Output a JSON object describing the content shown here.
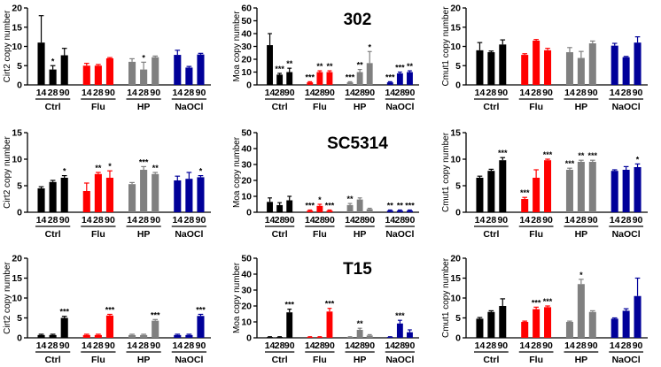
{
  "colors": {
    "Ctrl": "#000000",
    "Flu": "#ff0000",
    "HP": "#808080",
    "NaOCl": "#000099"
  },
  "chart_data": [
    {
      "type": "bar",
      "id": "c302-cirt2",
      "strain": "302",
      "title": "",
      "ylabel": "Cirt2 copy number",
      "ylim": [
        0,
        20
      ],
      "yticks": [
        0,
        5,
        10,
        15,
        20
      ],
      "ytick_labels": [
        "0",
        "5",
        "10",
        "15",
        "20"
      ],
      "x_labels": [
        "14",
        "28",
        "90",
        "14",
        "28",
        "90",
        "14",
        "28",
        "90",
        "14",
        "28",
        "90"
      ],
      "groups": [
        "Ctrl",
        "Flu",
        "HP",
        "NaOCl"
      ],
      "values": [
        11,
        4,
        7.7,
        5,
        5,
        6.9,
        6,
        4,
        7.2,
        7.8,
        4.5,
        7.9
      ],
      "errors": [
        7,
        1,
        1.8,
        0.6,
        0.3,
        0.2,
        0.8,
        1.9,
        0.3,
        1.2,
        0.3,
        0.3
      ],
      "significance": [
        "",
        "*",
        "",
        "",
        "",
        "",
        "",
        "*",
        "",
        "",
        "",
        ""
      ]
    },
    {
      "type": "bar",
      "id": "c302-moa",
      "strain": "302",
      "title": "302",
      "ylabel": "Moa copy number",
      "ylim": [
        0,
        60
      ],
      "yticks": [
        0,
        10,
        20,
        30,
        40,
        50,
        60
      ],
      "ytick_labels": [
        "0",
        "10",
        "20",
        "30",
        "40",
        "50",
        "60"
      ],
      "x_labels": [
        "14",
        "28",
        "90",
        "14",
        "28",
        "90",
        "14",
        "28",
        "90",
        "14",
        "28",
        "90"
      ],
      "groups": [
        "Ctrl",
        "Flu",
        "HP",
        "NaOCl"
      ],
      "values": [
        31,
        8,
        10,
        2,
        10,
        10,
        2,
        10,
        17,
        2,
        9,
        10
      ],
      "errors": [
        9,
        1,
        3,
        0.5,
        1,
        1,
        0.5,
        2,
        9,
        0.5,
        1,
        1
      ],
      "significance": [
        "",
        "***",
        "**",
        "***",
        "**",
        "**",
        "***",
        "**",
        "*",
        "***",
        "***",
        "**"
      ]
    },
    {
      "type": "bar",
      "id": "c302-cmut1",
      "strain": "302",
      "title": "",
      "ylabel": "Cmut1 copy number",
      "ylim": [
        0,
        20
      ],
      "yticks": [
        0,
        5,
        10,
        15,
        20
      ],
      "ytick_labels": [
        "0",
        "5",
        "10",
        "15",
        "20"
      ],
      "x_labels": [
        "14",
        "28",
        "90",
        "14",
        "28",
        "90",
        "14",
        "28",
        "90",
        "14",
        "28",
        "90"
      ],
      "groups": [
        "Ctrl",
        "Flu",
        "HP",
        "NaOCl"
      ],
      "values": [
        9,
        8.5,
        10.5,
        7.8,
        11.5,
        9,
        8.5,
        7,
        10.8,
        10.2,
        7.2,
        11
      ],
      "errors": [
        2,
        0.3,
        1.2,
        0.3,
        0.3,
        0.5,
        1.2,
        1.7,
        0.6,
        0.6,
        0.2,
        1.5
      ],
      "significance": [
        "",
        "",
        "",
        "",
        "",
        "",
        "",
        "",
        "",
        "",
        "",
        ""
      ]
    },
    {
      "type": "bar",
      "id": "sc-cirt2",
      "strain": "SC5314",
      "title": "",
      "ylabel": "Cirt2 copy number",
      "ylim": [
        0,
        15
      ],
      "yticks": [
        0,
        5,
        10,
        15
      ],
      "ytick_labels": [
        "0",
        "5",
        "10",
        "15"
      ],
      "x_labels": [
        "14",
        "28",
        "90",
        "14",
        "28",
        "90",
        "14",
        "28",
        "90",
        "14",
        "28",
        "90"
      ],
      "groups": [
        "Ctrl",
        "Flu",
        "HP",
        "NaOCl"
      ],
      "values": [
        4.5,
        5.7,
        6.5,
        4,
        7.2,
        6.5,
        5.3,
        8,
        7.2,
        6,
        6.3,
        6.6
      ],
      "errors": [
        0.3,
        0.3,
        0.4,
        1.5,
        0.3,
        1.3,
        0.3,
        0.6,
        0.3,
        0.8,
        1.2,
        0.3
      ],
      "significance": [
        "",
        "",
        "*",
        "",
        "**",
        "*",
        "",
        "***",
        "**",
        "",
        "",
        "*"
      ]
    },
    {
      "type": "bar",
      "id": "sc-moa",
      "strain": "SC5314",
      "title": "SC5314",
      "ylabel": "Moa copy number",
      "ylim": [
        0,
        50
      ],
      "yticks": [
        0,
        10,
        20,
        30,
        40,
        50
      ],
      "ytick_labels": [
        "0",
        "10",
        "20",
        "30",
        "40",
        "50"
      ],
      "x_labels": [
        "14",
        "28",
        "90",
        "14",
        "28",
        "90",
        "14",
        "28",
        "90",
        "14",
        "28",
        "90"
      ],
      "groups": [
        "Ctrl",
        "Flu",
        "HP",
        "NaOCl"
      ],
      "values": [
        6.5,
        4.5,
        7.5,
        1,
        4,
        1,
        4.5,
        8,
        2,
        1,
        1,
        1
      ],
      "errors": [
        2.5,
        1.5,
        2.5,
        0.4,
        1,
        0.4,
        1,
        1,
        0.5,
        0.4,
        0.4,
        0.4
      ],
      "significance": [
        "",
        "",
        "",
        "***",
        "*",
        "***",
        "**",
        "",
        "",
        "**",
        "**",
        "***"
      ]
    },
    {
      "type": "bar",
      "id": "sc-cmut1",
      "strain": "SC5314",
      "title": "",
      "ylabel": "Cmut1 copy number",
      "ylim": [
        0,
        15
      ],
      "yticks": [
        0,
        5,
        10,
        15
      ],
      "ytick_labels": [
        "0",
        "5",
        "10",
        "15"
      ],
      "x_labels": [
        "14",
        "28",
        "90",
        "14",
        "28",
        "90",
        "14",
        "28",
        "90",
        "14",
        "28",
        "90"
      ],
      "groups": [
        "Ctrl",
        "Flu",
        "HP",
        "NaOCl"
      ],
      "values": [
        6.5,
        7.8,
        9.8,
        2.5,
        6.5,
        9.8,
        8,
        9.5,
        9.5,
        7.8,
        8,
        8.5
      ],
      "errors": [
        0.3,
        0.3,
        0.5,
        0.3,
        1.5,
        0.2,
        0.3,
        0.3,
        0.3,
        0.2,
        0.6,
        0.6
      ],
      "significance": [
        "",
        "",
        "***",
        "***",
        "",
        "***",
        "***",
        "**",
        "***",
        "",
        "",
        "*"
      ]
    },
    {
      "type": "bar",
      "id": "t15-cirt2",
      "strain": "T15",
      "title": "",
      "ylabel": "Cirt2 copy number",
      "ylim": [
        0,
        20
      ],
      "yticks": [
        0,
        5,
        10,
        15,
        20
      ],
      "ytick_labels": [
        "0",
        "5",
        "10",
        "15",
        "20"
      ],
      "x_labels": [
        "14",
        "28",
        "90",
        "14",
        "28",
        "90",
        "14",
        "28",
        "90",
        "14",
        "28",
        "90"
      ],
      "groups": [
        "Ctrl",
        "Flu",
        "HP",
        "NaOCl"
      ],
      "values": [
        0.7,
        0.7,
        5,
        0.7,
        0.7,
        5.6,
        0.7,
        0.7,
        4.3,
        0.7,
        0.7,
        5.5
      ],
      "errors": [
        0.2,
        0.2,
        0.4,
        0.2,
        0.2,
        0.3,
        0.2,
        0.2,
        0.3,
        0.2,
        0.2,
        0.4
      ],
      "significance": [
        "",
        "",
        "***",
        "",
        "",
        "***",
        "",
        "",
        "***",
        "",
        "",
        "***"
      ]
    },
    {
      "type": "bar",
      "id": "t15-moa",
      "strain": "T15",
      "title": "T15",
      "ylabel": "Moa copy number",
      "ylim": [
        0,
        50
      ],
      "yticks": [
        0,
        10,
        20,
        30,
        40,
        50
      ],
      "ytick_labels": [
        "0",
        "10",
        "20",
        "30",
        "40",
        "50"
      ],
      "x_labels": [
        "14",
        "28",
        "90",
        "14",
        "28",
        "90",
        "14",
        "28",
        "90",
        "14",
        "28",
        "90"
      ],
      "groups": [
        "Ctrl",
        "Flu",
        "HP",
        "NaOCl"
      ],
      "values": [
        0.5,
        0.5,
        16,
        0.5,
        0.5,
        16.5,
        0.5,
        5,
        1.5,
        0.5,
        9,
        3.5
      ],
      "errors": [
        0.2,
        0.2,
        2,
        0.2,
        0.2,
        2,
        0.2,
        1,
        0.5,
        0.2,
        2,
        1.5
      ],
      "significance": [
        "",
        "",
        "***",
        "",
        "",
        "***",
        "",
        "**",
        "",
        "",
        "***",
        ""
      ]
    },
    {
      "type": "bar",
      "id": "t15-cmut1",
      "strain": "T15",
      "title": "",
      "ylabel": "Cmut1 copy number",
      "ylim": [
        0,
        20
      ],
      "yticks": [
        0,
        5,
        10,
        15,
        20
      ],
      "ytick_labels": [
        "0",
        "5",
        "10",
        "15",
        "20"
      ],
      "x_labels": [
        "14",
        "28",
        "90",
        "14",
        "28",
        "90",
        "14",
        "28",
        "90",
        "14",
        "28",
        "90"
      ],
      "groups": [
        "Ctrl",
        "Flu",
        "HP",
        "NaOCl"
      ],
      "values": [
        4.8,
        6.5,
        8,
        4,
        7.2,
        7.7,
        4,
        13.5,
        6.5,
        4.8,
        6.8,
        10.5
      ],
      "errors": [
        0.3,
        0.3,
        1.8,
        0.2,
        0.5,
        0.3,
        0.2,
        1.2,
        0.3,
        0.2,
        0.5,
        4.5
      ],
      "significance": [
        "",
        "",
        "",
        "",
        "***",
        "***",
        "",
        "*",
        "",
        "",
        "",
        ""
      ]
    }
  ]
}
